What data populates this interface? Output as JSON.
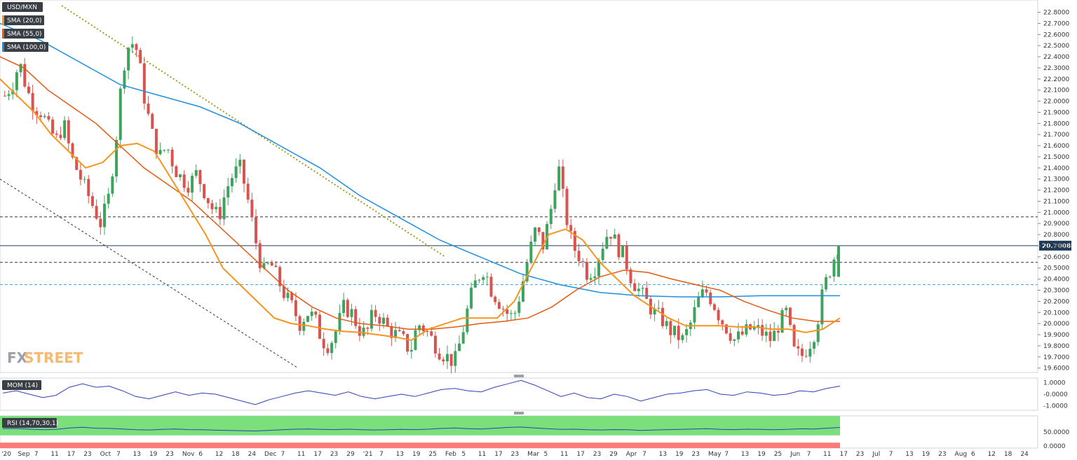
{
  "chart_data": [
    {
      "type": "candlestick",
      "title": "USD/MXN",
      "legend": [
        "USD/MXN",
        "SMA (20,0)",
        "SMA (55,0)",
        "SMA (100,0)"
      ],
      "indicator_colors": {
        "sma20": "#f7941d",
        "sma55": "#e35a12",
        "sma100": "#1e8fe0"
      },
      "candle_colors": {
        "up": "#3da35d",
        "down": "#d9534f"
      },
      "last_price": "20.70088",
      "y_ticks": [
        "22.8000",
        "22.7000",
        "22.6000",
        "22.5000",
        "22.4000",
        "22.3000",
        "22.2000",
        "22.1000",
        "22.0000",
        "21.9000",
        "21.8000",
        "21.7000",
        "21.6000",
        "21.5000",
        "21.4000",
        "21.3000",
        "21.2000",
        "21.1000",
        "21.0000",
        "20.9000",
        "20.8000",
        "20.7000",
        "20.6000",
        "20.5000",
        "20.4000",
        "20.3000",
        "20.2000",
        "20.1000",
        "20.0000",
        "19.9000",
        "19.8000",
        "19.7000",
        "19.6000"
      ],
      "ylim": [
        19.56,
        22.86
      ],
      "horizontal_levels": [
        20.96,
        20.55,
        20.35
      ],
      "x_labels": [
        "'20",
        "Sep",
        "7",
        "11",
        "17",
        "23",
        "Oct",
        "7",
        "13",
        "19",
        "23",
        "Nov",
        "6",
        "12",
        "18",
        "24",
        "Dec",
        "7",
        "11",
        "17",
        "23",
        "29",
        "'21",
        "7",
        "13",
        "19",
        "25",
        "Feb",
        "5",
        "11",
        "17",
        "23",
        "Mar",
        "5",
        "11",
        "17",
        "23",
        "29",
        "Apr",
        "7",
        "13",
        "19",
        "23",
        "May",
        "7",
        "13",
        "19",
        "25",
        "Jun",
        "7",
        "11",
        "17",
        "23",
        "Jul",
        "7",
        "13",
        "19",
        "23",
        "Aug",
        "6",
        "12",
        "18",
        "24"
      ],
      "close_path": [
        22.05,
        22.15,
        22.35,
        22.1,
        21.95,
        21.9,
        21.75,
        21.65,
        21.8,
        21.5,
        21.35,
        21.2,
        21.05,
        20.9,
        21.1,
        21.6,
        22.3,
        22.55,
        22.45,
        22.0,
        21.7,
        21.5,
        21.6,
        21.4,
        21.3,
        21.25,
        21.35,
        21.2,
        21.05,
        20.95,
        21.2,
        21.35,
        21.4,
        21.1,
        20.75,
        20.45,
        20.55,
        20.4,
        20.25,
        20.15,
        20.0,
        20.1,
        20.05,
        19.85,
        19.8,
        19.95,
        20.15,
        20.1,
        19.95,
        19.9,
        20.1,
        20.05,
        19.95,
        19.9,
        19.85,
        19.75,
        20.0,
        19.95,
        19.85,
        19.75,
        19.7,
        19.65,
        19.9,
        20.2,
        20.4,
        20.5,
        20.3,
        20.2,
        20.1,
        20.05,
        20.3,
        20.6,
        20.85,
        20.7,
        21.0,
        21.45,
        21.0,
        20.7,
        20.6,
        20.45,
        20.5,
        20.7,
        20.85,
        20.7,
        20.6,
        20.4,
        20.3,
        20.2,
        20.1,
        20.05,
        19.95,
        19.9,
        19.85,
        20.0,
        20.2,
        20.3,
        20.2,
        20.05,
        19.95,
        19.85,
        19.9,
        19.95,
        19.95,
        19.9,
        19.85,
        20.0,
        20.1,
        19.75,
        19.7,
        19.8,
        19.95,
        20.3,
        20.5,
        20.7
      ],
      "sma20_path": [
        22.2,
        22.05,
        21.9,
        21.7,
        21.55,
        21.4,
        21.45,
        21.6,
        21.62,
        21.55,
        21.3,
        21.05,
        20.8,
        20.5,
        20.35,
        20.2,
        20.05,
        20.0,
        19.98,
        19.95,
        19.93,
        19.92,
        19.9,
        19.88,
        19.85,
        19.95,
        20.0,
        20.05,
        20.05,
        20.05,
        20.2,
        20.5,
        20.8,
        20.85,
        20.75,
        20.55,
        20.4,
        20.25,
        20.15,
        20.05,
        19.98,
        19.98,
        19.98,
        19.97,
        19.97,
        19.95,
        19.95,
        19.92,
        19.95,
        20.05
      ],
      "sma55_path": [
        22.4,
        22.3,
        22.1,
        21.95,
        21.8,
        21.6,
        21.4,
        21.25,
        21.1,
        20.9,
        20.7,
        20.5,
        20.3,
        20.15,
        20.05,
        20.0,
        19.98,
        19.95,
        19.95,
        19.97,
        20.0,
        20.02,
        20.05,
        20.15,
        20.3,
        20.42,
        20.48,
        20.46,
        20.4,
        20.35,
        20.3,
        20.2,
        20.12,
        20.05,
        20.02,
        20.02
      ],
      "sma100_path": [
        22.7,
        22.55,
        22.35,
        22.15,
        22.05,
        21.95,
        21.8,
        21.6,
        21.4,
        21.15,
        20.95,
        20.75,
        20.6,
        20.45,
        20.35,
        20.28,
        20.25,
        20.24,
        20.24,
        20.25,
        20.25,
        20.25
      ],
      "trendlines": [
        {
          "style": "dotted",
          "from": [
            22.86,
            0
          ],
          "to": [
            20.6,
            0
          ]
        },
        {
          "style": "dashed",
          "from": [
            21.3,
            0
          ],
          "to": [
            19.6,
            0
          ]
        }
      ]
    },
    {
      "type": "line",
      "legend": "MOM (14)",
      "y_ticks": [
        "1.0000",
        "-0.0000",
        "-1.0000"
      ],
      "ylim": [
        -1.4,
        1.4
      ],
      "values": [
        0.1,
        0.3,
        0.0,
        -0.3,
        -0.1,
        0.6,
        0.9,
        0.6,
        0.7,
        0.3,
        -0.2,
        -0.4,
        -0.1,
        0.2,
        -0.1,
        0.1,
        0.0,
        -0.3,
        -0.6,
        -0.9,
        -0.5,
        -0.2,
        0.1,
        0.3,
        0.1,
        -0.1,
        0.2,
        -0.2,
        -0.4,
        -0.2,
        0.0,
        -0.2,
        0.1,
        0.4,
        0.5,
        0.3,
        0.2,
        0.6,
        0.9,
        1.2,
        0.8,
        0.3,
        -0.2,
        0.1,
        -0.3,
        -0.4,
        0.0,
        -0.2,
        -0.6,
        -0.3,
        0.0,
        0.1,
        0.3,
        0.4,
        0.0,
        -0.1,
        0.2,
        0.1,
        -0.1,
        0.0,
        0.3,
        0.2,
        0.5,
        0.7
      ]
    },
    {
      "type": "line",
      "legend": "RSI (14,70,30,1)",
      "y_ticks": [
        "50.0000",
        "0.0000"
      ],
      "ylim": [
        0,
        100
      ],
      "upper_band": 70,
      "lower_band": 30,
      "band_colors": {
        "over": "#7be07b",
        "under": "#ff7b7b"
      },
      "values": [
        55,
        58,
        50,
        45,
        48,
        62,
        70,
        60,
        58,
        52,
        45,
        42,
        48,
        52,
        46,
        44,
        40,
        38,
        35,
        32,
        38,
        45,
        50,
        52,
        48,
        46,
        50,
        45,
        42,
        45,
        48,
        46,
        50,
        58,
        62,
        56,
        52,
        60,
        68,
        72,
        62,
        55,
        48,
        50,
        44,
        42,
        46,
        44,
        38,
        42,
        46,
        48,
        52,
        56,
        48,
        46,
        50,
        48,
        45,
        48,
        54,
        52,
        60,
        68
      ]
    }
  ],
  "brand": {
    "logo_fx": "FX",
    "logo_street": "STREET"
  }
}
